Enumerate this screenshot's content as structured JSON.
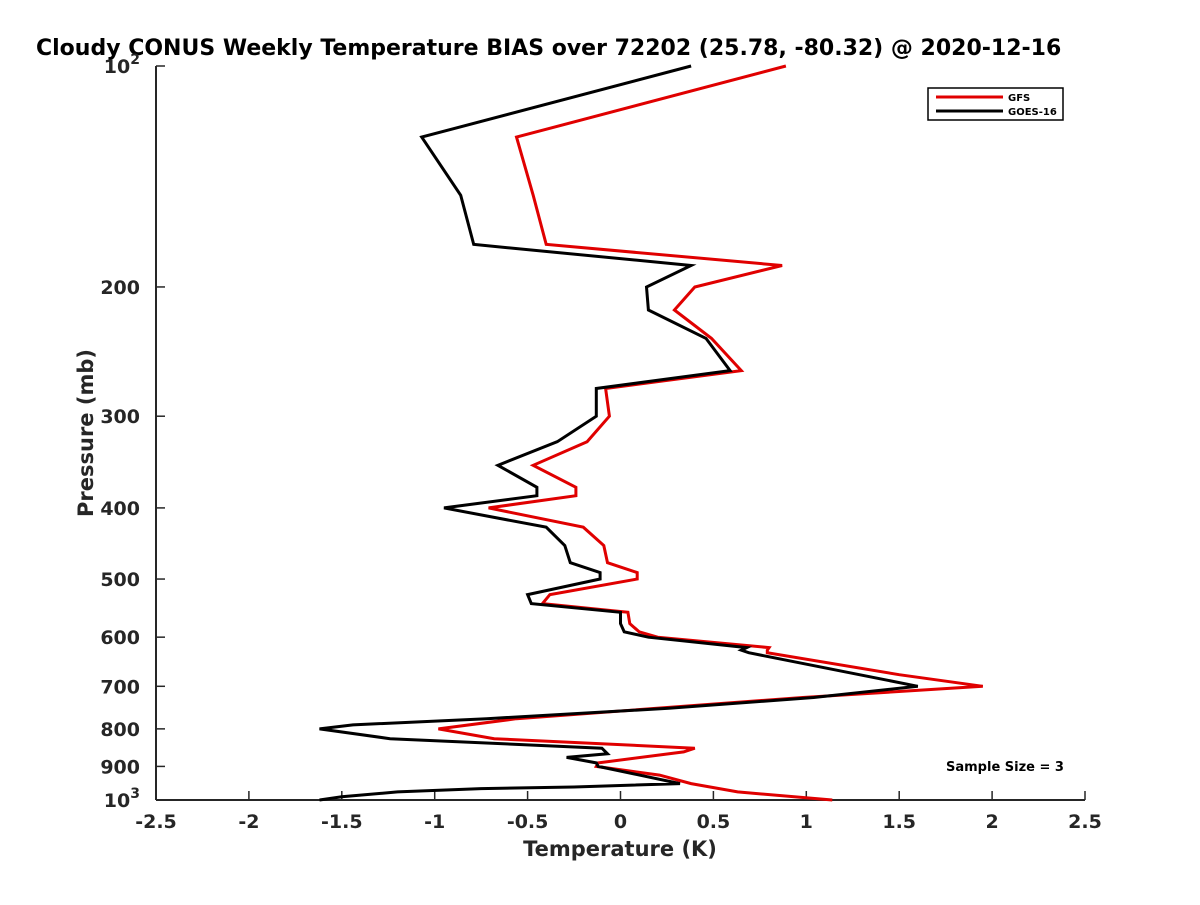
{
  "chart_data": {
    "type": "line",
    "title": "Cloudy CONUS Weekly Temperature BIAS over 72202 (25.78, -80.32) @ 2020-12-16",
    "xlabel": "Temperature (K)",
    "ylabel": "Pressure (mb)",
    "xlim": [
      -2.5,
      2.5
    ],
    "ylim": [
      100,
      1000
    ],
    "y_scale": "log",
    "y_reversed": true,
    "grid": false,
    "legend_position": "top-right",
    "xticks": [
      {
        "value": -2.5,
        "label": "-2.5"
      },
      {
        "value": -2,
        "label": "-2"
      },
      {
        "value": -1.5,
        "label": "-1.5"
      },
      {
        "value": -1,
        "label": "-1"
      },
      {
        "value": -0.5,
        "label": "-0.5"
      },
      {
        "value": 0,
        "label": "0"
      },
      {
        "value": 0.5,
        "label": "0.5"
      },
      {
        "value": 1,
        "label": "1"
      },
      {
        "value": 1.5,
        "label": "1.5"
      },
      {
        "value": 2,
        "label": "2"
      },
      {
        "value": 2.5,
        "label": "2.5"
      }
    ],
    "yticks": [
      {
        "value": 100,
        "base": "10",
        "exp": "2",
        "label": ""
      },
      {
        "value": 200,
        "label": "200"
      },
      {
        "value": 300,
        "label": "300"
      },
      {
        "value": 400,
        "label": "400"
      },
      {
        "value": 500,
        "label": "500"
      },
      {
        "value": 600,
        "label": "600"
      },
      {
        "value": 700,
        "label": "700"
      },
      {
        "value": 800,
        "label": "800"
      },
      {
        "value": 900,
        "label": "900"
      },
      {
        "value": 1000,
        "base": "10",
        "exp": "3",
        "label": ""
      }
    ],
    "series": [
      {
        "name": "GFS",
        "color": "#e00000",
        "points": [
          [
            0.89,
            100
          ],
          [
            -0.56,
            125
          ],
          [
            -0.47,
            150
          ],
          [
            -0.4,
            175
          ],
          [
            0.87,
            187
          ],
          [
            0.4,
            200
          ],
          [
            0.29,
            215
          ],
          [
            0.49,
            235
          ],
          [
            0.65,
            260
          ],
          [
            -0.08,
            275
          ],
          [
            -0.06,
            300
          ],
          [
            -0.18,
            325
          ],
          [
            -0.47,
            350
          ],
          [
            -0.24,
            375
          ],
          [
            -0.24,
            385
          ],
          [
            -0.71,
            400
          ],
          [
            -0.2,
            425
          ],
          [
            -0.09,
            450
          ],
          [
            -0.07,
            475
          ],
          [
            0.09,
            490
          ],
          [
            0.09,
            500
          ],
          [
            -0.38,
            525
          ],
          [
            -0.42,
            540
          ],
          [
            0.04,
            555
          ],
          [
            0.05,
            575
          ],
          [
            0.1,
            590
          ],
          [
            0.2,
            600
          ],
          [
            0.8,
            620
          ],
          [
            0.79,
            625
          ],
          [
            0.79,
            630
          ],
          [
            1.5,
            675
          ],
          [
            1.95,
            700
          ],
          [
            0.98,
            725
          ],
          [
            -0.56,
            775
          ],
          [
            -0.98,
            800
          ],
          [
            -0.68,
            825
          ],
          [
            0.4,
            850
          ],
          [
            0.34,
            860
          ],
          [
            -0.12,
            890
          ],
          [
            -0.13,
            900
          ],
          [
            0.21,
            925
          ],
          [
            0.38,
            950
          ],
          [
            0.63,
            975
          ],
          [
            1.14,
            1000
          ]
        ]
      },
      {
        "name": "GOES-16",
        "color": "#000000",
        "points": [
          [
            0.38,
            100
          ],
          [
            -1.07,
            125
          ],
          [
            -0.86,
            150
          ],
          [
            -0.79,
            175
          ],
          [
            0.38,
            187
          ],
          [
            0.14,
            200
          ],
          [
            0.15,
            215
          ],
          [
            0.46,
            235
          ],
          [
            0.59,
            260
          ],
          [
            -0.13,
            275
          ],
          [
            -0.13,
            300
          ],
          [
            -0.34,
            325
          ],
          [
            -0.66,
            350
          ],
          [
            -0.45,
            375
          ],
          [
            -0.45,
            385
          ],
          [
            -0.95,
            400
          ],
          [
            -0.4,
            425
          ],
          [
            -0.3,
            450
          ],
          [
            -0.27,
            475
          ],
          [
            -0.11,
            490
          ],
          [
            -0.11,
            500
          ],
          [
            -0.5,
            525
          ],
          [
            -0.48,
            540
          ],
          [
            0,
            555
          ],
          [
            0,
            575
          ],
          [
            0.02,
            590
          ],
          [
            0.15,
            600
          ],
          [
            0.68,
            620
          ],
          [
            0.65,
            625
          ],
          [
            0.69,
            630
          ],
          [
            1.6,
            700
          ],
          [
            1.04,
            725
          ],
          [
            0.26,
            750
          ],
          [
            -0.72,
            775
          ],
          [
            -1.44,
            790
          ],
          [
            -1.62,
            800
          ],
          [
            -1.24,
            825
          ],
          [
            -0.1,
            850
          ],
          [
            -0.07,
            865
          ],
          [
            -0.29,
            875
          ],
          [
            -0.13,
            890
          ],
          [
            -0.12,
            900
          ],
          [
            0.32,
            950
          ],
          [
            -0.25,
            960
          ],
          [
            -0.75,
            965
          ],
          [
            -1.2,
            975
          ],
          [
            -1.5,
            990
          ],
          [
            -1.62,
            1000
          ]
        ]
      }
    ],
    "annotations": [
      {
        "text": "Sample Size = 3"
      }
    ]
  }
}
